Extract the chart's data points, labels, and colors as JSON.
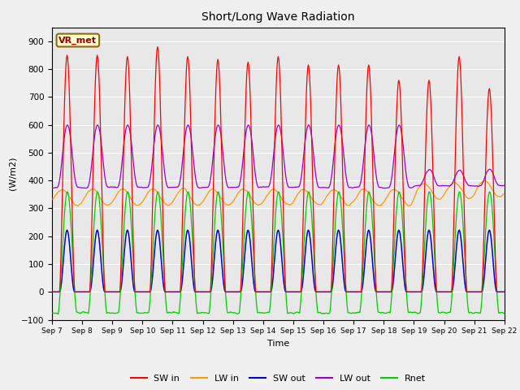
{
  "title": "Short/Long Wave Radiation",
  "xlabel": "Time",
  "ylabel": "(W/m2)",
  "ylim": [
    -100,
    950
  ],
  "yticks": [
    -100,
    0,
    100,
    200,
    300,
    400,
    500,
    600,
    700,
    800,
    900
  ],
  "station_label": "VR_met",
  "x_tick_labels": [
    "Sep 7",
    "Sep 8",
    "Sep 9",
    "Sep 10",
    "Sep 11",
    "Sep 12",
    "Sep 13",
    "Sep 14",
    "Sep 15",
    "Sep 16",
    "Sep 17",
    "Sep 18",
    "Sep 19",
    "Sep 20",
    "Sep 21",
    "Sep 22"
  ],
  "colors": {
    "SW_in": "#ff0000",
    "LW_in": "#ff9900",
    "SW_out": "#0000cc",
    "LW_out": "#9900cc",
    "Rnet": "#00cc00"
  },
  "legend_labels": [
    "SW in",
    "LW in",
    "SW out",
    "LW out",
    "Rnet"
  ],
  "fig_bg_color": "#f0f0f0",
  "plot_bg_color": "#e8e8e8"
}
